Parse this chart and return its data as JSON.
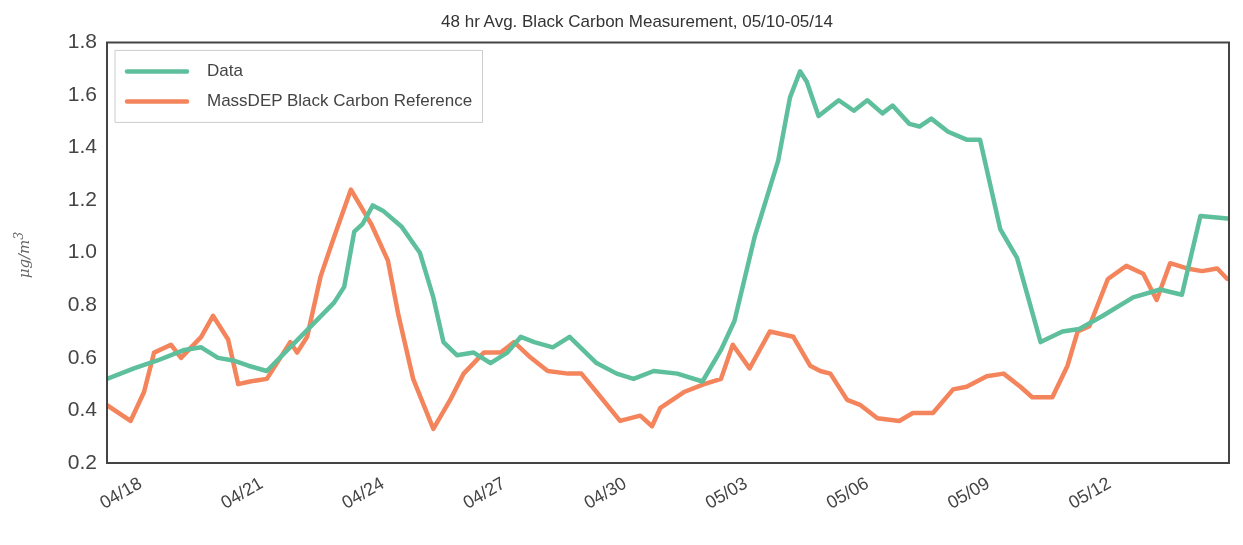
{
  "chart_data": {
    "type": "line",
    "title": "48 hr Avg. Black Carbon Measurement, 05/10-05/14",
    "ylabel": "μg/m$^{3}$",
    "xlim": [
      "--04-17T04:00",
      "--05-14T23:00"
    ],
    "xticks": [
      {
        "value": "--04-18",
        "label": "04/18"
      },
      {
        "value": "--04-21",
        "label": "04/21"
      },
      {
        "value": "--04-24",
        "label": "04/24"
      },
      {
        "value": "--04-27",
        "label": "04/27"
      },
      {
        "value": "--04-30",
        "label": "04/30"
      },
      {
        "value": "--05-03",
        "label": "05/03"
      },
      {
        "value": "--05-06",
        "label": "05/06"
      },
      {
        "value": "--05-09",
        "label": "05/09"
      },
      {
        "value": "--05-12",
        "label": "05/12"
      }
    ],
    "ylim": [
      0.2,
      1.8
    ],
    "yticks": [
      0.2,
      0.4,
      0.6,
      0.8,
      {
        "value": 1.0,
        "label": "1.0"
      },
      1.2,
      1.4,
      1.6,
      1.8
    ],
    "legend": "top left",
    "line_style": "solid",
    "series": [
      {
        "name": "Data",
        "color": "#5dbf9b",
        "x": [
          "--04-17T04:00",
          "--04-17T20:00",
          "--04-18T10:00",
          "--04-19T02:00",
          "--04-19T12:00",
          "--04-19T22:00",
          "--04-20T07:00",
          "--04-20T16:00",
          "--04-21T03:00",
          "--04-21T23:00",
          "--04-22T19:00",
          "--04-23T01:00",
          "--04-23T07:00",
          "--04-23T12:00",
          "--04-23T18:00",
          "--04-24T00:00",
          "--04-24T11:00",
          "--04-24T22:00",
          "--04-25T06:00",
          "--04-25T12:00",
          "--04-25T20:00",
          "--04-26T06:00",
          "--04-26T16:00",
          "--04-27T02:00",
          "--04-27T10:00",
          "--04-27T18:00",
          "--04-28T05:00",
          "--04-28T15:00",
          "--04-29T07:00",
          "--04-29T19:00",
          "--04-30T05:00",
          "--04-30T17:00",
          "--05-01T07:00",
          "--05-01T22:00",
          "--05-02T09:00",
          "--05-02T17:00",
          "--05-03T05:00",
          "--05-03T19:00",
          "--05-04T02:00",
          "--05-04T08:00",
          "--05-04T12:00",
          "--05-04T19:00",
          "--05-05T07:00",
          "--05-05T16:00",
          "--05-06T00:00",
          "--05-06T09:00",
          "--05-06T15:00",
          "--05-07T01:00",
          "--05-07T07:00",
          "--05-07T14:00",
          "--05-08T00:00",
          "--05-08T11:00",
          "--05-08T19:00",
          "--05-09T07:00",
          "--05-09T17:00",
          "--05-10T07:00",
          "--05-10T20:00",
          "--05-11T06:00",
          "--05-11T20:00",
          "--05-12T14:00",
          "--05-13T06:00",
          "--05-13T19:00",
          "--05-14T06:00",
          "--05-14T22:00"
        ],
        "values": [
          0.52,
          0.56,
          0.59,
          0.63,
          0.64,
          0.6,
          0.59,
          0.57,
          0.55,
          0.68,
          0.81,
          0.87,
          1.08,
          1.11,
          1.18,
          1.16,
          1.1,
          1.0,
          0.83,
          0.66,
          0.61,
          0.62,
          0.58,
          0.62,
          0.68,
          0.66,
          0.64,
          0.68,
          0.58,
          0.54,
          0.52,
          0.55,
          0.54,
          0.51,
          0.63,
          0.74,
          1.06,
          1.35,
          1.59,
          1.69,
          1.65,
          1.52,
          1.58,
          1.54,
          1.58,
          1.53,
          1.56,
          1.49,
          1.48,
          1.51,
          1.46,
          1.43,
          1.43,
          1.09,
          0.98,
          0.66,
          0.7,
          0.71,
          0.76,
          0.83,
          0.86,
          0.84,
          1.14,
          1.13
        ]
      },
      {
        "name": "MassDEP Black Carbon Reference",
        "color": "#f4845c",
        "x": [
          "--04-17T04:00",
          "--04-17T18:00",
          "--04-18T02:00",
          "--04-18T08:00",
          "--04-18T18:00",
          "--04-19T00:00",
          "--04-19T12:00",
          "--04-19T19:00",
          "--04-20T04:00",
          "--04-20T10:00",
          "--04-20T17:00",
          "--04-21T03:00",
          "--04-21T09:00",
          "--04-21T17:00",
          "--04-21T21:00",
          "--04-22T03:00",
          "--04-22T11:00",
          "--04-22T19:00",
          "--04-23T05:00",
          "--04-23T17:00",
          "--04-24T03:00",
          "--04-24T09:00",
          "--04-24T18:00",
          "--04-25T06:00",
          "--04-25T16:00",
          "--04-26T00:00",
          "--04-26T12:00",
          "--04-26T22:00",
          "--04-27T06:00",
          "--04-27T16:00",
          "--04-28T02:00",
          "--04-28T14:00",
          "--04-28T22:00",
          "--04-29T07:00",
          "--04-29T21:00",
          "--04-30T09:00",
          "--04-30T16:00",
          "--04-30T21:00",
          "--05-01T11:00",
          "--05-01T23:00",
          "--05-02T09:00",
          "--05-02T16:00",
          "--05-03T02:00",
          "--05-03T14:00",
          "--05-04T04:00",
          "--05-04T14:00",
          "--05-04T20:00",
          "--05-05T02:00",
          "--05-05T12:00",
          "--05-05T20:00",
          "--05-06T06:00",
          "--05-06T19:00",
          "--05-07T03:00",
          "--05-07T15:00",
          "--05-08T03:00",
          "--05-08T11:00",
          "--05-08T23:00",
          "--05-09T09:00",
          "--05-09T19:00",
          "--05-10T02:00",
          "--05-10T14:00",
          "--05-10T23:00",
          "--05-11T05:00",
          "--05-11T12:00",
          "--05-11T23:00",
          "--05-12T10:00",
          "--05-12T20:00",
          "--05-13T04:00",
          "--05-13T12:00",
          "--05-13T22:00",
          "--05-14T07:00",
          "--05-14T16:00",
          "--05-14T22:00"
        ],
        "values": [
          0.42,
          0.36,
          0.47,
          0.62,
          0.65,
          0.6,
          0.68,
          0.76,
          0.67,
          0.5,
          0.51,
          0.52,
          0.58,
          0.66,
          0.62,
          0.68,
          0.91,
          1.06,
          1.24,
          1.11,
          0.97,
          0.77,
          0.52,
          0.33,
          0.44,
          0.54,
          0.62,
          0.62,
          0.66,
          0.6,
          0.55,
          0.54,
          0.54,
          0.47,
          0.36,
          0.38,
          0.34,
          0.41,
          0.47,
          0.5,
          0.52,
          0.65,
          0.56,
          0.7,
          0.68,
          0.57,
          0.55,
          0.54,
          0.44,
          0.42,
          0.37,
          0.36,
          0.39,
          0.39,
          0.48,
          0.49,
          0.53,
          0.54,
          0.49,
          0.45,
          0.45,
          0.57,
          0.7,
          0.72,
          0.9,
          0.95,
          0.92,
          0.82,
          0.96,
          0.94,
          0.93,
          0.94,
          0.9
        ]
      }
    ]
  }
}
